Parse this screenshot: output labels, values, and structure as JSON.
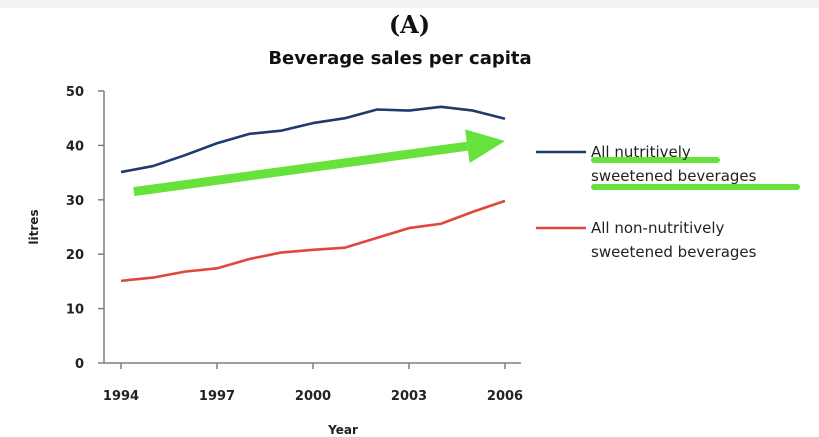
{
  "panel_label": "(A)",
  "chart_data": {
    "type": "line",
    "title": "Beverage sales per capita",
    "xlabel": "Year",
    "ylabel": "litres",
    "x": [
      1994,
      1995,
      1996,
      1997,
      1998,
      1999,
      2000,
      2001,
      2002,
      2003,
      2004,
      2005,
      2006
    ],
    "x_ticks": [
      "1994",
      "1997",
      "2000",
      "2003",
      "2006"
    ],
    "y_ticks": [
      "0",
      "10",
      "20",
      "30",
      "40",
      "50"
    ],
    "ylim": [
      0,
      50
    ],
    "xlim": [
      1994,
      2006
    ],
    "grid": false,
    "legend_position": "right",
    "series": [
      {
        "name": "All nutritively sweetened beverages",
        "legend_lines": [
          "All nutritively",
          "sweetened beverages"
        ],
        "color": "#1f3a6e",
        "values": [
          35.1,
          36.2,
          38.2,
          40.4,
          42.1,
          42.7,
          44.1,
          45.0,
          46.6,
          46.4,
          47.1,
          46.4,
          44.9
        ]
      },
      {
        "name": "All non-nutritively sweetened beverages",
        "legend_lines": [
          "All non-nutritively",
          "sweetened beverages"
        ],
        "color": "#e0473a",
        "values": [
          15.1,
          15.7,
          16.8,
          17.4,
          19.1,
          20.3,
          20.8,
          21.2,
          23.0,
          24.8,
          25.6,
          27.8,
          29.8
        ]
      }
    ],
    "annotations": [
      {
        "kind": "trend-arrow",
        "color": "#66e23a",
        "from": [
          1994.4,
          31.5
        ],
        "to": [
          2006,
          40.8
        ]
      },
      {
        "kind": "highlight",
        "color": "#66e23a",
        "target": "legend-0-line-1"
      },
      {
        "kind": "highlight",
        "color": "#66e23a",
        "target": "legend-0-line-2"
      }
    ]
  }
}
